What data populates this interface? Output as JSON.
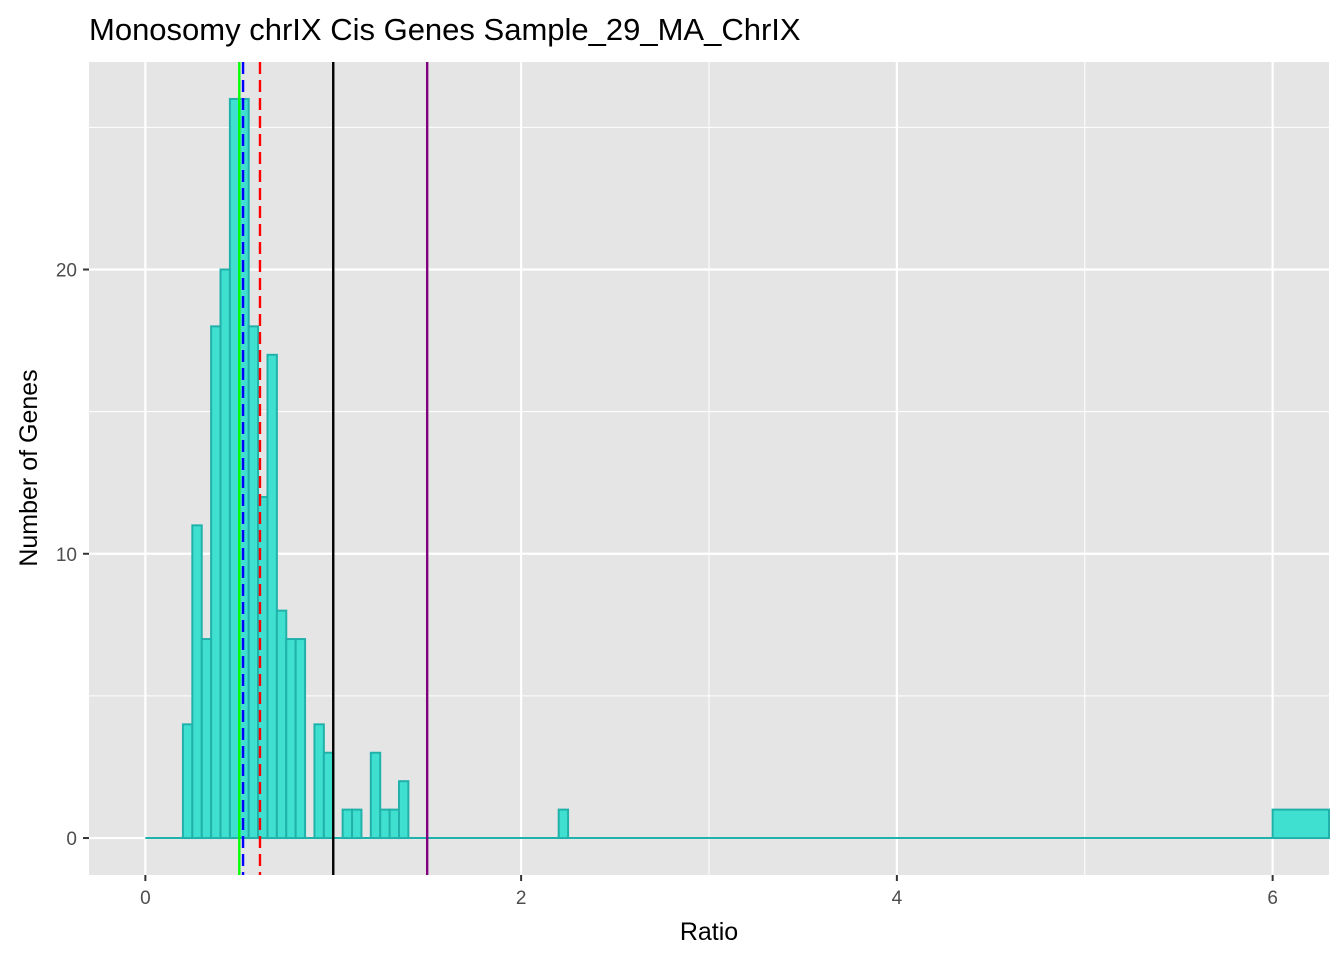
{
  "chart_data": {
    "type": "bar",
    "subtype": "histogram",
    "title": "Monosomy chrIX Cis Genes Sample_29_MA_ChrIX",
    "xlabel": "Ratio",
    "ylabel": "Number of Genes",
    "xlim": [
      -0.3,
      6.3
    ],
    "ylim": [
      -1.3,
      27.3
    ],
    "x_ticks": [
      0,
      2,
      4,
      6
    ],
    "x_tick_labels": [
      "0",
      "2",
      "4",
      "6"
    ],
    "y_ticks": [
      0,
      10,
      20
    ],
    "y_tick_labels": [
      "0",
      "10",
      "20"
    ],
    "x_minor_ticks": [
      1,
      3,
      5
    ],
    "y_minor_ticks": [
      5,
      15,
      25
    ],
    "grid": true,
    "bin_width": 0.05,
    "bar_fill": "#40e0d0",
    "bar_stroke": "#20b2aa",
    "panel_background": "#e5e5e5",
    "grid_color": "#ffffff",
    "bins": [
      {
        "x0": 0.2,
        "x1": 0.25,
        "count": 4
      },
      {
        "x0": 0.25,
        "x1": 0.3,
        "count": 11
      },
      {
        "x0": 0.3,
        "x1": 0.35,
        "count": 7
      },
      {
        "x0": 0.35,
        "x1": 0.4,
        "count": 18
      },
      {
        "x0": 0.4,
        "x1": 0.45,
        "count": 20
      },
      {
        "x0": 0.45,
        "x1": 0.5,
        "count": 26
      },
      {
        "x0": 0.5,
        "x1": 0.55,
        "count": 26
      },
      {
        "x0": 0.55,
        "x1": 0.6,
        "count": 18
      },
      {
        "x0": 0.6,
        "x1": 0.65,
        "count": 12
      },
      {
        "x0": 0.65,
        "x1": 0.7,
        "count": 17
      },
      {
        "x0": 0.7,
        "x1": 0.75,
        "count": 8
      },
      {
        "x0": 0.75,
        "x1": 0.8,
        "count": 7
      },
      {
        "x0": 0.8,
        "x1": 0.85,
        "count": 7
      },
      {
        "x0": 0.85,
        "x1": 0.9,
        "count": 0
      },
      {
        "x0": 0.9,
        "x1": 0.95,
        "count": 4
      },
      {
        "x0": 0.95,
        "x1": 1.0,
        "count": 3
      },
      {
        "x0": 1.0,
        "x1": 1.05,
        "count": 0
      },
      {
        "x0": 1.05,
        "x1": 1.1,
        "count": 1
      },
      {
        "x0": 1.1,
        "x1": 1.15,
        "count": 1
      },
      {
        "x0": 1.15,
        "x1": 1.2,
        "count": 0
      },
      {
        "x0": 1.2,
        "x1": 1.25,
        "count": 3
      },
      {
        "x0": 1.25,
        "x1": 1.3,
        "count": 1
      },
      {
        "x0": 1.3,
        "x1": 1.35,
        "count": 1
      },
      {
        "x0": 1.35,
        "x1": 1.4,
        "count": 2
      },
      {
        "x0": 2.2,
        "x1": 2.25,
        "count": 1
      },
      {
        "x0": 6.0,
        "x1": 6.3,
        "count": 1
      }
    ],
    "baseline": {
      "x0": 0.0,
      "x1": 6.3,
      "count": 0
    },
    "reference_lines": [
      {
        "x": 0.5,
        "color": "#00ff00",
        "dash": "solid"
      },
      {
        "x": 0.52,
        "color": "#0000ff",
        "dash": "dashed"
      },
      {
        "x": 0.61,
        "color": "#ff0000",
        "dash": "dashed"
      },
      {
        "x": 1.0,
        "color": "#000000",
        "dash": "solid"
      },
      {
        "x": 1.5,
        "color": "#800080",
        "dash": "solid"
      }
    ]
  }
}
